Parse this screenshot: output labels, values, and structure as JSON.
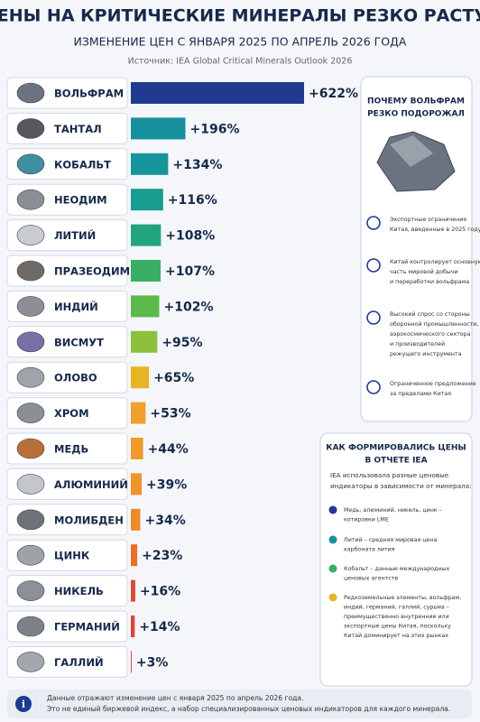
{
  "chart_data": {
    "type": "bar",
    "orientation": "horizontal",
    "title": "ЦЕНЫ НА КРИТИЧЕСКИЕ МИНЕРАЛЫ РЕЗКО РАСТУТ",
    "subtitle": "ИЗМЕНЕНИЕ ЦЕН С ЯНВАРЯ 2025 ПО АПРЕЛЬ 2026 ГОДА",
    "source": "Источник: IEA Global Critical Minerals Outlook 2026",
    "categories": [
      "ВОЛЬФРАМ",
      "ТАНТАЛ",
      "КОБАЛЬТ",
      "НЕОДИМ",
      "ЛИТИЙ",
      "ПРАЗЕОДИМ",
      "ИНДИЙ",
      "ВИСМУТ",
      "ОЛОВО",
      "ХРОМ",
      "МЕДЬ",
      "АЛЮМИНИЙ",
      "МОЛИБДЕН",
      "ЦИНК",
      "НИКЕЛЬ",
      "ГЕРМАНИЙ",
      "ГАЛЛИЙ"
    ],
    "values": [
      622,
      196,
      134,
      116,
      108,
      107,
      102,
      95,
      65,
      53,
      44,
      39,
      34,
      23,
      16,
      14,
      3
    ],
    "value_labels": [
      "+622%",
      "+196%",
      "+134%",
      "+116%",
      "+108%",
      "+107%",
      "+102%",
      "+95%",
      "+65%",
      "+53%",
      "+44%",
      "+39%",
      "+34%",
      "+23%",
      "+16%",
      "+14%",
      "+3%"
    ],
    "colors": [
      "#1f3a8f",
      "#16909c",
      "#16959a",
      "#179c90",
      "#22a57f",
      "#3aae66",
      "#5cb84b",
      "#8cc13c",
      "#e6b523",
      "#f0a12b",
      "#f09a2b",
      "#ef932b",
      "#ec8a2c",
      "#e86e2c",
      "#dc4a3a",
      "#d9443a",
      "#d6403a"
    ]
  },
  "panel_why": {
    "title": [
      "ПОЧЕМУ ВОЛЬФРАМ",
      "РЕЗКО ПОДОРОЖАЛ"
    ],
    "items": [
      [
        "Экспортные ограничения",
        "Китая, введенные в 2025 году"
      ],
      [
        "Китай контролирует основную",
        "часть мировой добычи",
        "и переработки вольфрама"
      ],
      [
        "Высокий спрос со стороны",
        "оборонной промышленности,",
        "аэрокосмического сектора",
        "и производителей",
        "режущего инструмента"
      ],
      [
        "Ограниченное предложение",
        "за пределами Китая"
      ]
    ]
  },
  "panel_how": {
    "title": [
      "КАК ФОРМИРОВАЛИСЬ ЦЕНЫ",
      "В ОТЧЕТЕ IEA"
    ],
    "intro": [
      "IEA использовала разные ценовые",
      "индикаторы в зависимости от минерала:"
    ],
    "items": [
      {
        "color": "#1f3a8f",
        "lines": [
          "Медь, алюминий, никель, цинк –",
          "котировки LME"
        ]
      },
      {
        "color": "#16909c",
        "lines": [
          "Литий – средняя мировая цена",
          "карбоната лития"
        ]
      },
      {
        "color": "#3aae66",
        "lines": [
          "Кобальт – данные международных",
          "ценовых агентств"
        ]
      },
      {
        "color": "#e6b523",
        "lines": [
          "Редкоземельные элементы, вольфрам,",
          "индий, германий, галлий, сурьма –",
          "преимущественно внутренние или",
          "экспортные цены Китая, поскольку",
          "Китай доминирует на этих рынках"
        ]
      }
    ]
  },
  "footer": [
    "Данные отражают изменение цен с января 2025 по апрель 2026 года.",
    "Это не единый биржевой индекс, а набор специализированных ценовых индикаторов для каждого минерала."
  ]
}
